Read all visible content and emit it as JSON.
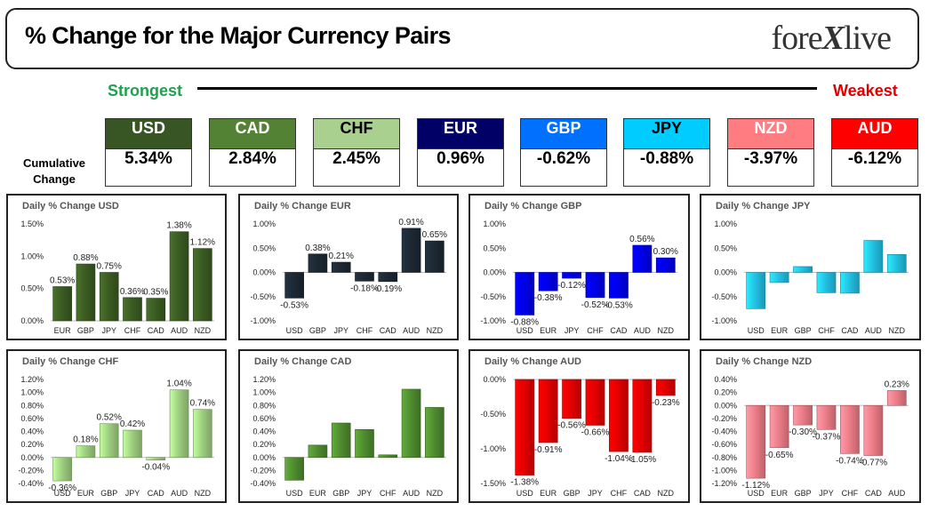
{
  "header": {
    "title": "% Change for the Major Currency Pairs",
    "logo_text_1": "fore",
    "logo_text_x": "X",
    "logo_text_2": "live"
  },
  "scale": {
    "strongest": "Strongest",
    "weakest": "Weakest"
  },
  "cumulative_label": "Cumulative Change",
  "currencies": [
    {
      "code": "USD",
      "value": "5.34%",
      "color": "#375623",
      "text_color": "#ffffff"
    },
    {
      "code": "CAD",
      "value": "2.84%",
      "color": "#548235",
      "text_color": "#ffffff"
    },
    {
      "code": "CHF",
      "value": "2.45%",
      "color": "#a9d08e",
      "text_color": "#000000"
    },
    {
      "code": "EUR",
      "value": "0.96%",
      "color": "#000066",
      "text_color": "#ffffff"
    },
    {
      "code": "GBP",
      "value": "-0.62%",
      "color": "#0070ff",
      "text_color": "#ffffff"
    },
    {
      "code": "JPY",
      "value": "-0.88%",
      "color": "#00ccff",
      "text_color": "#000000"
    },
    {
      "code": "NZD",
      "value": "-3.97%",
      "color": "#ff7c80",
      "text_color": "#ffffff"
    },
    {
      "code": "AUD",
      "value": "-6.12%",
      "color": "#ff0000",
      "text_color": "#ffffff"
    }
  ],
  "chart_data": [
    {
      "type": "bar",
      "title": "Daily % Change USD",
      "color": "#3a5a22",
      "categories": [
        "EUR",
        "GBP",
        "JPY",
        "CHF",
        "CAD",
        "AUD",
        "NZD"
      ],
      "values": [
        0.53,
        0.88,
        0.75,
        0.36,
        0.35,
        1.38,
        1.12
      ],
      "labels": [
        "0.53%",
        "0.88%",
        "0.75%",
        "0.36%",
        "0.35%",
        "1.38%",
        "1.12%"
      ],
      "ylim": [
        0,
        1.5
      ],
      "yticks": [
        "0.00%",
        "0.50%",
        "1.00%",
        "1.50%"
      ],
      "ytick_values": [
        0,
        0.5,
        1.0,
        1.5
      ]
    },
    {
      "type": "bar",
      "title": "Daily % Change EUR",
      "color": "#1c2833",
      "categories": [
        "USD",
        "GBP",
        "JPY",
        "CHF",
        "CAD",
        "AUD",
        "NZD"
      ],
      "values": [
        -0.53,
        0.38,
        0.21,
        -0.18,
        -0.19,
        0.91,
        0.65
      ],
      "labels": [
        "-0.53%",
        "0.38%",
        "0.21%",
        "-0.18%",
        "-0.19%",
        "0.91%",
        "0.65%"
      ],
      "ylim": [
        -1,
        1
      ],
      "yticks": [
        "-1.00%",
        "-0.50%",
        "0.00%",
        "0.50%",
        "1.00%"
      ],
      "ytick_values": [
        -1,
        -0.5,
        0,
        0.5,
        1
      ]
    },
    {
      "type": "bar",
      "title": "Daily % Change GBP",
      "color": "#0000e6",
      "categories": [
        "USD",
        "EUR",
        "JPY",
        "CHF",
        "CAD",
        "AUD",
        "NZD"
      ],
      "values": [
        -0.88,
        -0.38,
        -0.12,
        -0.52,
        -0.53,
        0.56,
        0.3
      ],
      "labels": [
        "-0.88%",
        "-0.38%",
        "-0.12%",
        "-0.52%",
        "-0.53%",
        "0.56%",
        "0.30%"
      ],
      "ylim": [
        -1,
        1
      ],
      "yticks": [
        "-1.00%",
        "-0.50%",
        "0.00%",
        "0.50%",
        "1.00%"
      ],
      "ytick_values": [
        -1,
        -0.5,
        0,
        0.5,
        1
      ]
    },
    {
      "type": "bar",
      "title": "Daily % Change JPY",
      "color": "#22bde0",
      "categories": [
        "USD",
        "EUR",
        "GBP",
        "CHF",
        "CAD",
        "AUD",
        "NZD"
      ],
      "values": [
        -0.75,
        -0.21,
        0.12,
        -0.42,
        -0.43,
        0.66,
        0.37
      ],
      "labels": [],
      "ylim": [
        -1,
        1
      ],
      "yticks": [
        "-1.00%",
        "-0.50%",
        "0.00%",
        "0.50%",
        "1.00%"
      ],
      "ytick_values": [
        -1,
        -0.5,
        0,
        0.5,
        1
      ]
    },
    {
      "type": "bar",
      "title": "Daily % Change CHF",
      "color": "#9ccc7e",
      "categories": [
        "USD",
        "EUR",
        "GBP",
        "JPY",
        "CAD",
        "AUD",
        "NZD"
      ],
      "values": [
        -0.36,
        0.18,
        0.52,
        0.42,
        -0.04,
        1.04,
        0.74
      ],
      "labels": [
        "-0.36%",
        "0.18%",
        "0.52%",
        "0.42%",
        "-0.04%",
        "1.04%",
        "0.74%"
      ],
      "ylim": [
        -0.4,
        1.2
      ],
      "yticks": [
        "-0.40%",
        "-0.20%",
        "0.00%",
        "0.20%",
        "0.40%",
        "0.60%",
        "0.80%",
        "1.00%",
        "1.20%"
      ],
      "ytick_values": [
        -0.4,
        -0.2,
        0,
        0.2,
        0.4,
        0.6,
        0.8,
        1.0,
        1.2
      ]
    },
    {
      "type": "bar",
      "title": "Daily % Change CAD",
      "color": "#4e8a2e",
      "categories": [
        "USD",
        "EUR",
        "GBP",
        "JPY",
        "CHF",
        "AUD",
        "NZD"
      ],
      "values": [
        -0.35,
        0.19,
        0.53,
        0.43,
        0.04,
        1.05,
        0.77
      ],
      "labels": [],
      "ylim": [
        -0.4,
        1.2
      ],
      "yticks": [
        "-0.40%",
        "-0.20%",
        "0.00%",
        "0.20%",
        "0.40%",
        "0.60%",
        "0.80%",
        "1.00%",
        "1.20%"
      ],
      "ytick_values": [
        -0.4,
        -0.2,
        0,
        0.2,
        0.4,
        0.6,
        0.8,
        1.0,
        1.2
      ]
    },
    {
      "type": "bar",
      "title": "Daily % Change AUD",
      "color": "#e00000",
      "categories": [
        "USD",
        "EUR",
        "GBP",
        "JPY",
        "CHF",
        "CAD",
        "NZD"
      ],
      "values": [
        -1.38,
        -0.91,
        -0.56,
        -0.66,
        -1.04,
        -1.05,
        -0.23
      ],
      "labels": [
        "-1.38%",
        "-0.91%",
        "-0.56%",
        "-0.66%",
        "-1.04%",
        "-1.05%",
        "-0.23%"
      ],
      "ylim": [
        -1.5,
        0
      ],
      "yticks": [
        "-1.50%",
        "-1.00%",
        "-0.50%",
        "0.00%"
      ],
      "ytick_values": [
        -1.5,
        -1.0,
        -0.5,
        0
      ],
      "xaxis_bottom": true
    },
    {
      "type": "bar",
      "title": "Daily % Change NZD",
      "color": "#ea7b86",
      "categories": [
        "USD",
        "EUR",
        "GBP",
        "JPY",
        "CHF",
        "CAD",
        "AUD"
      ],
      "values": [
        -1.12,
        -0.65,
        -0.3,
        -0.37,
        -0.74,
        -0.77,
        0.23
      ],
      "labels": [
        "-1.12%",
        "-0.65%",
        "-0.30%",
        "-0.37%",
        "-0.74%",
        "-0.77%",
        "0.23%"
      ],
      "ylim": [
        -1.2,
        0.4
      ],
      "yticks": [
        "-1.20%",
        "-1.00%",
        "-0.80%",
        "-0.60%",
        "-0.40%",
        "-0.20%",
        "0.00%",
        "0.20%",
        "0.40%"
      ],
      "ytick_values": [
        -1.2,
        -1.0,
        -0.8,
        -0.6,
        -0.4,
        -0.2,
        0,
        0.2,
        0.4
      ],
      "xaxis_bottom": true
    }
  ]
}
